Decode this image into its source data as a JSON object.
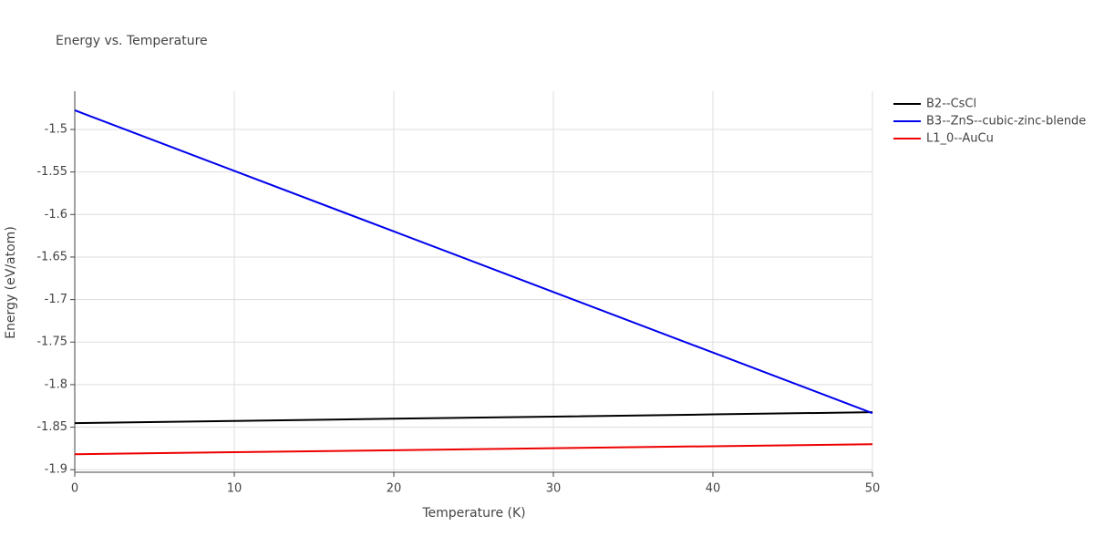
{
  "chart_data": {
    "type": "line",
    "title": "Energy vs. Temperature",
    "x_label": "Temperature (K)",
    "y_label": "Energy (eV/atom)",
    "x": [
      0,
      10,
      20,
      30,
      40,
      50
    ],
    "series": [
      {
        "name": "B2--CsCl",
        "color": "#000000",
        "values": [
          -1.8453,
          -1.8427,
          -1.8401,
          -1.8376,
          -1.835,
          -1.8324
        ]
      },
      {
        "name": "B3--ZnS--cubic-zinc-blende",
        "color": "#0000ee",
        "values": [
          -1.4775,
          -1.5487,
          -1.6199,
          -1.6911,
          -1.7623,
          -1.8335
        ]
      },
      {
        "name": "L1_0--AuCu",
        "color": "#ee0000",
        "values": [
          -1.8818,
          -1.8794,
          -1.8771,
          -1.8747,
          -1.8724,
          -1.87
        ]
      }
    ],
    "xlim": [
      0,
      50
    ],
    "xticks": [
      0,
      10,
      20,
      30,
      40,
      50
    ],
    "ylim": [
      -1.903,
      -1.455
    ],
    "yticks": [
      -1.9,
      -1.85,
      -1.8,
      -1.75,
      -1.7,
      -1.65,
      -1.6,
      -1.55,
      -1.5
    ],
    "grid": true,
    "legend": "right"
  }
}
